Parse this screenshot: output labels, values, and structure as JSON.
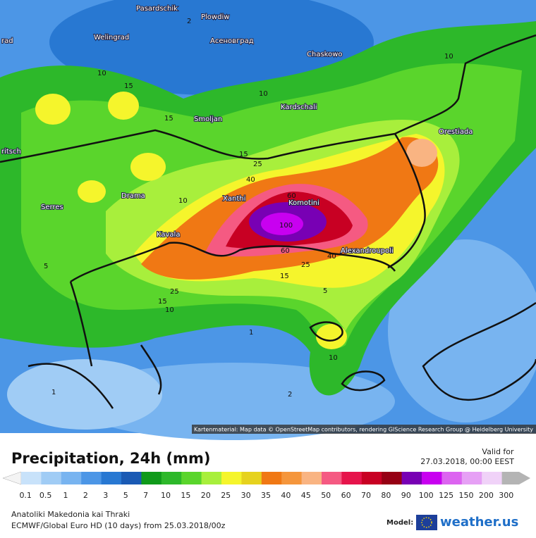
{
  "map": {
    "city_labels": [
      "Pasardschik",
      "Plowdiw",
      "Асеновград",
      "Welingrad",
      "rad",
      "Chaskowo",
      "Kardschali",
      "Smoljan",
      "Orestiada",
      "ritsch",
      "Xanthi",
      "Komotini",
      "Drama",
      "Serres",
      "Kavala",
      "Alexandroupoli"
    ],
    "contour_labels": [
      2,
      10,
      10,
      15,
      10,
      15,
      15,
      25,
      40,
      60,
      10,
      100,
      60,
      40,
      25,
      15,
      5,
      25,
      15,
      10,
      5,
      1,
      10,
      1,
      2
    ],
    "attribution": "Kartenmaterial: Map data © OpenStreetMap contributors, rendering GIScience Research Group @ Heidelberg University"
  },
  "legend": {
    "title": "Precipitation, 24h (mm)",
    "valid_for_label": "Valid for",
    "valid_time": "27.03.2018, 00:00 EEST",
    "scale": [
      {
        "value": 0.1,
        "color": "#c8e2fa"
      },
      {
        "value": 0.5,
        "color": "#a0ccf5"
      },
      {
        "value": 1,
        "color": "#78b4f0"
      },
      {
        "value": 2,
        "color": "#4c96e6"
      },
      {
        "value": 3,
        "color": "#2878d2"
      },
      {
        "value": 5,
        "color": "#1a5ab4"
      },
      {
        "value": 7,
        "color": "#0f9a1a"
      },
      {
        "value": 10,
        "color": "#2db82a"
      },
      {
        "value": 15,
        "color": "#5ad52c"
      },
      {
        "value": 20,
        "color": "#a8ef3c"
      },
      {
        "value": 25,
        "color": "#f5f52c"
      },
      {
        "value": 30,
        "color": "#e6d21e"
      },
      {
        "value": 35,
        "color": "#f07814"
      },
      {
        "value": 40,
        "color": "#f5963c"
      },
      {
        "value": 45,
        "color": "#f9b482"
      },
      {
        "value": 50,
        "color": "#f55a82"
      },
      {
        "value": 60,
        "color": "#e6144b"
      },
      {
        "value": 70,
        "color": "#c80023"
      },
      {
        "value": 80,
        "color": "#960014"
      },
      {
        "value": 90,
        "color": "#7800b4"
      },
      {
        "value": 100,
        "color": "#c800f0"
      },
      {
        "value": 125,
        "color": "#dc64f0"
      },
      {
        "value": 150,
        "color": "#e6a0f5"
      },
      {
        "value": 200,
        "color": "#f0d2f8"
      },
      {
        "value": 300,
        "color": "#b4b4b4"
      }
    ],
    "region": "Anatoliki Makedonia kai Thraki",
    "model_info": "ECMWF/Global Euro HD (10 days) from 25.03.2018/00z",
    "model_label": "Model:",
    "brand": "weather.us"
  }
}
